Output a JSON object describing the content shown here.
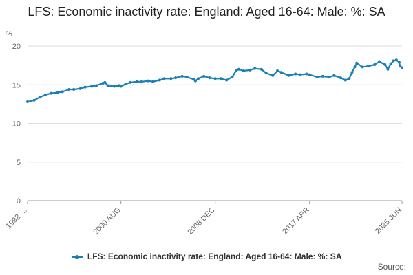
{
  "title": "LFS: Economic inactivity rate: England: Aged 16-64: Male: %: SA",
  "source_label": "Source:",
  "colors": {
    "series": "#1a7fb6",
    "grid": "#dddddd",
    "axis": "#999999",
    "tick_text": "#666666"
  },
  "chart_data": {
    "type": "line",
    "title": "LFS: Economic inactivity rate: England: Aged 16-64: Male: %: SA",
    "ylabel": "%",
    "xlabel": "",
    "ylim": [
      0,
      20
    ],
    "yticks": [
      0,
      5,
      10,
      15,
      20
    ],
    "xlim": [
      "1992 MAY",
      "2025 JUN"
    ],
    "xtick_labels": [
      "1992 …",
      "2000 AUG",
      "2008 DEC",
      "2017 APR",
      "2025 JUN"
    ],
    "grid": true,
    "legend_position": "bottom",
    "series": [
      {
        "name": "LFS: Economic inactivity rate: England: Aged 16-64: Male: %: SA",
        "points": [
          [
            "1992 MAY",
            12.8
          ],
          [
            "1992 DEC",
            13.0
          ],
          [
            "1993 JUN",
            13.4
          ],
          [
            "1993 DEC",
            13.7
          ],
          [
            "1994 JUN",
            13.9
          ],
          [
            "1995 JAN",
            14.0
          ],
          [
            "1995 JUN",
            14.1
          ],
          [
            "1996 JAN",
            14.4
          ],
          [
            "1996 JUN",
            14.4
          ],
          [
            "1997 JAN",
            14.5
          ],
          [
            "1997 JUN",
            14.7
          ],
          [
            "1998 JAN",
            14.8
          ],
          [
            "1998 JUN",
            14.9
          ],
          [
            "1999 JAN",
            15.2
          ],
          [
            "1999 MAR",
            15.3
          ],
          [
            "1999 JUN",
            14.9
          ],
          [
            "2000 JAN",
            14.8
          ],
          [
            "2000 JUN",
            14.9
          ],
          [
            "2000 AUG",
            14.8
          ],
          [
            "2001 JAN",
            15.1
          ],
          [
            "2001 JUN",
            15.3
          ],
          [
            "2002 JAN",
            15.4
          ],
          [
            "2002 JUN",
            15.4
          ],
          [
            "2003 JAN",
            15.5
          ],
          [
            "2003 JUN",
            15.4
          ],
          [
            "2004 JAN",
            15.6
          ],
          [
            "2004 JUN",
            15.8
          ],
          [
            "2005 JAN",
            15.8
          ],
          [
            "2005 JUN",
            15.9
          ],
          [
            "2006 JAN",
            16.1
          ],
          [
            "2006 JUN",
            16.0
          ],
          [
            "2007 JAN",
            15.7
          ],
          [
            "2007 MAR",
            15.5
          ],
          [
            "2007 JUN",
            15.8
          ],
          [
            "2007 DEC",
            16.1
          ],
          [
            "2008 JUN",
            15.9
          ],
          [
            "2008 DEC",
            15.8
          ],
          [
            "2009 JUN",
            15.8
          ],
          [
            "2009 DEC",
            15.6
          ],
          [
            "2010 JUN",
            16.0
          ],
          [
            "2010 OCT",
            16.8
          ],
          [
            "2011 JAN",
            17.0
          ],
          [
            "2011 JUN",
            16.8
          ],
          [
            "2012 JAN",
            16.9
          ],
          [
            "2012 JUN",
            17.1
          ],
          [
            "2013 JAN",
            17.0
          ],
          [
            "2013 JUN",
            16.5
          ],
          [
            "2014 JAN",
            16.2
          ],
          [
            "2014 JUN",
            16.8
          ],
          [
            "2014 OCT",
            16.6
          ],
          [
            "2015 JUN",
            16.2
          ],
          [
            "2016 JAN",
            16.4
          ],
          [
            "2016 JUN",
            16.3
          ],
          [
            "2017 JAN",
            16.4
          ],
          [
            "2017 APR",
            16.3
          ],
          [
            "2017 DEC",
            16.0
          ],
          [
            "2018 JUN",
            16.1
          ],
          [
            "2019 JAN",
            16.0
          ],
          [
            "2019 JUN",
            16.2
          ],
          [
            "2020 JAN",
            15.9
          ],
          [
            "2020 JUN",
            15.6
          ],
          [
            "2020 OCT",
            15.8
          ],
          [
            "2021 JAN",
            16.6
          ],
          [
            "2021 APR",
            17.3
          ],
          [
            "2021 JUN",
            17.8
          ],
          [
            "2021 DEC",
            17.3
          ],
          [
            "2022 JUN",
            17.4
          ],
          [
            "2023 JAN",
            17.6
          ],
          [
            "2023 JUN",
            18.0
          ],
          [
            "2023 DEC",
            17.6
          ],
          [
            "2024 MAR",
            17.0
          ],
          [
            "2024 JUN",
            17.7
          ],
          [
            "2024 SEP",
            18.1
          ],
          [
            "2024 DEC",
            18.2
          ],
          [
            "2025 MAR",
            17.9
          ],
          [
            "2025 APR",
            17.4
          ],
          [
            "2025 JUN",
            17.2
          ]
        ]
      }
    ]
  }
}
